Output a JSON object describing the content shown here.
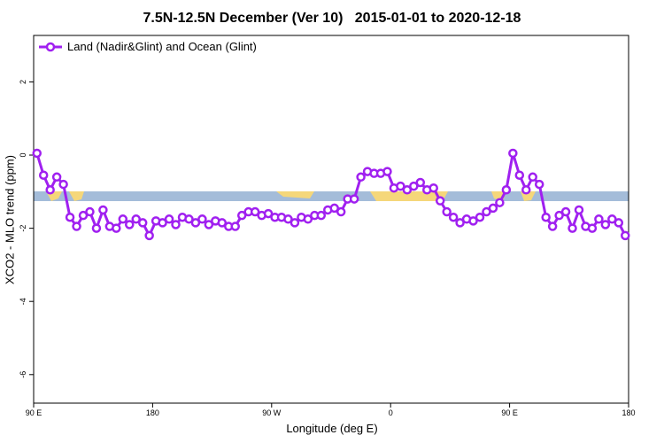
{
  "chart_data": {
    "type": "line",
    "title": "7.5N-12.5N December (Ver 10)   2015-01-01 to 2020-12-18",
    "xlabel": "Longitude (deg E)",
    "ylabel": "XCO2 - MLO trend (ppm)",
    "xlim": [
      90,
      540
    ],
    "ylim": [
      -6.78,
      3.27
    ],
    "xticks": [
      {
        "value": 90,
        "label": "90 E"
      },
      180,
      {
        "value": 270,
        "label": "90 W"
      },
      {
        "value": 360,
        "label": "0"
      },
      {
        "value": 450,
        "label": "90 E"
      },
      {
        "value": 540,
        "label": "180"
      }
    ],
    "yticks": [
      2,
      0,
      -2,
      -4,
      -6
    ],
    "legend": "upper left",
    "x": [
      92.5,
      97.5,
      102.5,
      107.5,
      112.5,
      117.5,
      122.5,
      127.5,
      132.5,
      137.5,
      142.5,
      147.5,
      152.5,
      157.5,
      162.5,
      167.5,
      172.5,
      177.5,
      182.5,
      187.5,
      192.5,
      197.5,
      202.5,
      207.5,
      212.5,
      217.5,
      222.5,
      227.5,
      232.5,
      237.5,
      242.5,
      247.5,
      252.5,
      257.5,
      262.5,
      267.5,
      272.5,
      277.5,
      282.5,
      287.5,
      292.5,
      297.5,
      302.5,
      307.5,
      312.5,
      317.5,
      322.5,
      327.5,
      332.5,
      337.5,
      342.5,
      347.5,
      352.5,
      357.5,
      362.5,
      367.5,
      372.5,
      377.5,
      382.5,
      387.5,
      392.5,
      397.5,
      402.5,
      407.5,
      412.5,
      417.5,
      422.5,
      427.5,
      432.5,
      437.5,
      442.5,
      447.5,
      452.5,
      457.5,
      462.5,
      467.5,
      472.5,
      477.5,
      482.5,
      487.5,
      492.5,
      497.5,
      502.5,
      507.5,
      512.5,
      517.5,
      522.5,
      527.5,
      532.5,
      537.5
    ],
    "series": [
      {
        "name": "Land (Nadir&Glint) and Ocean (Glint)",
        "color": "#a020f0",
        "values": [
          0.05,
          -0.55,
          -0.95,
          -0.6,
          -0.8,
          -1.7,
          -1.95,
          -1.65,
          -1.55,
          -2.0,
          -1.5,
          -1.95,
          -2.0,
          -1.75,
          -1.9,
          -1.75,
          -1.85,
          -2.2,
          -1.8,
          -1.85,
          -1.75,
          -1.9,
          -1.7,
          -1.75,
          -1.85,
          -1.75,
          -1.9,
          -1.8,
          -1.85,
          -1.95,
          -1.95,
          -1.65,
          -1.55,
          -1.55,
          -1.65,
          -1.6,
          -1.7,
          -1.7,
          -1.75,
          -1.85,
          -1.7,
          -1.75,
          -1.65,
          -1.65,
          -1.5,
          -1.45,
          -1.55,
          -1.2,
          -1.2,
          -0.6,
          -0.45,
          -0.5,
          -0.5,
          -0.45,
          -0.9,
          -0.85,
          -0.95,
          -0.85,
          -0.75,
          -0.95,
          -0.9,
          -1.25,
          -1.55,
          -1.7,
          -1.85,
          -1.75,
          -1.8,
          -1.7,
          -1.55,
          -1.45,
          -1.3,
          -0.95,
          0.05,
          -0.55,
          -0.95,
          -0.6,
          -0.8,
          -1.7,
          -1.95,
          -1.65,
          -1.55,
          -2.0,
          -1.5,
          -1.95,
          -2.0,
          -1.75,
          -1.9,
          -1.75,
          -1.85,
          -2.2
        ]
      }
    ]
  }
}
